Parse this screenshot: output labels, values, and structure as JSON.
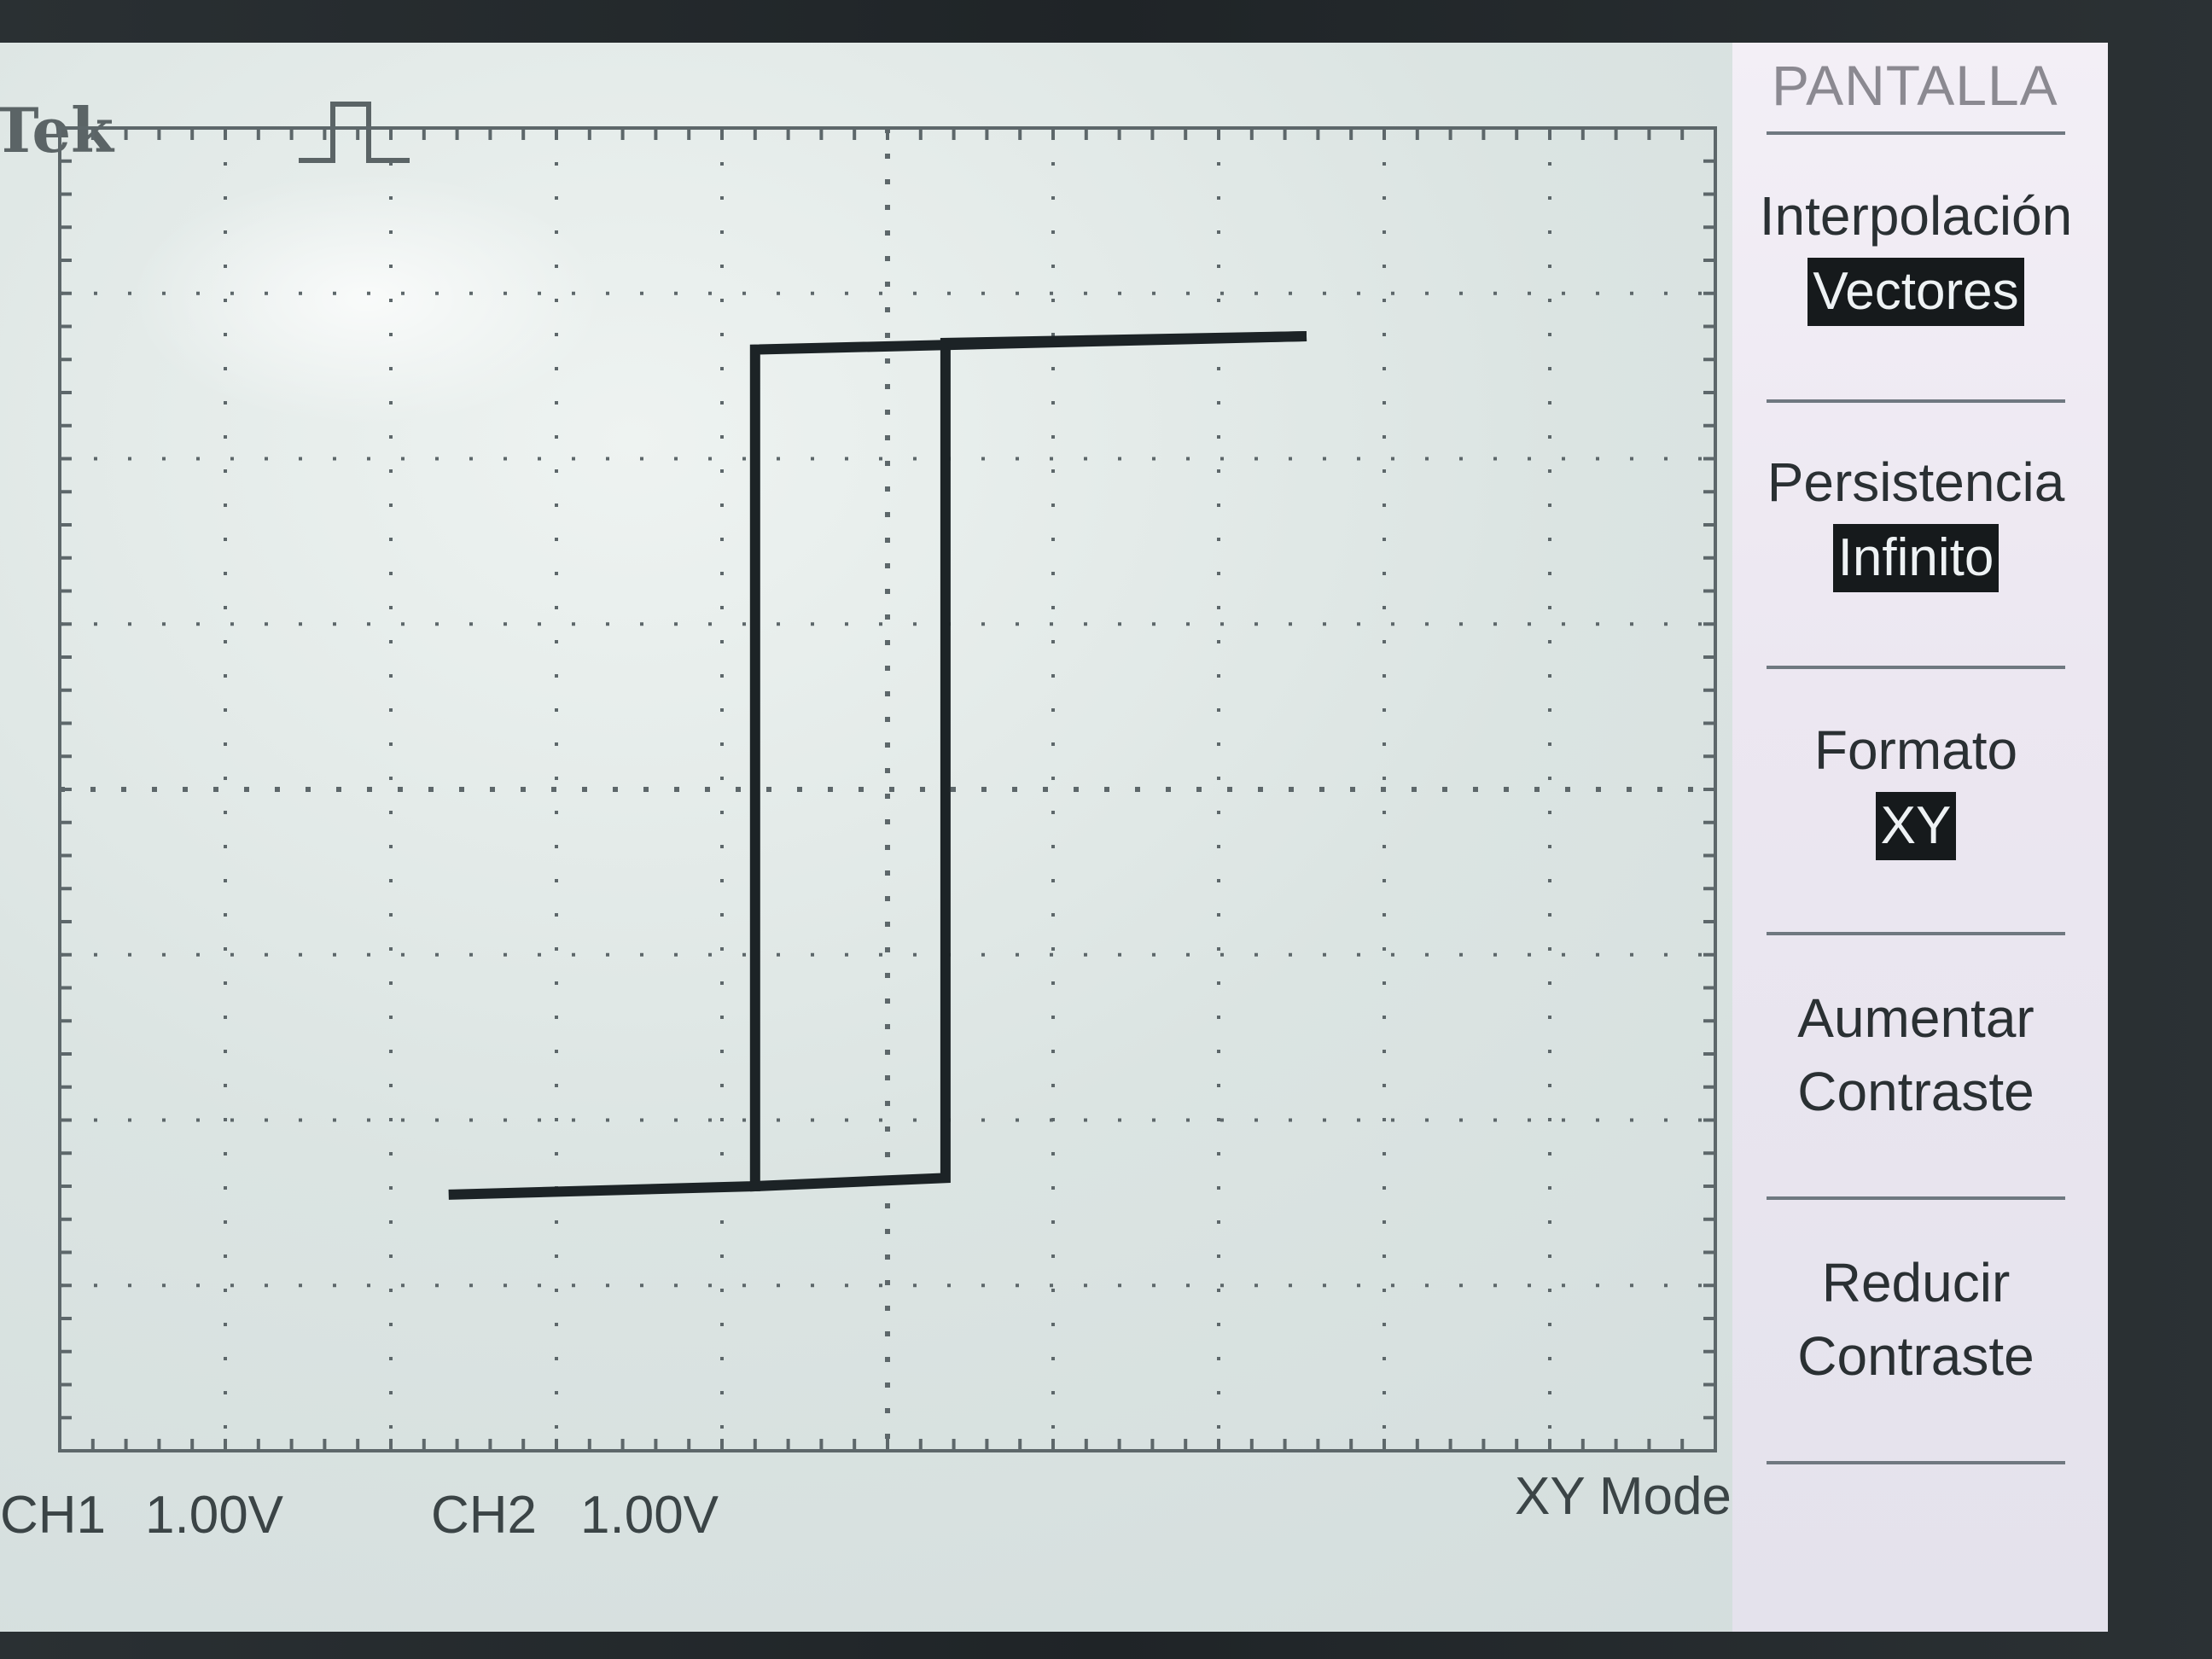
{
  "brand": "Tek",
  "trigger_status_icon": "pulse-icon",
  "readouts": {
    "ch1_label": "CH1",
    "ch1_scale": "1.00V",
    "ch2_label": "CH2",
    "ch2_scale": "1.00V",
    "mode": "XY Mode"
  },
  "menu": {
    "title": "PANTALLA",
    "items": [
      {
        "label": "Interpolación",
        "value": "Vectores"
      },
      {
        "label": "Persistencia",
        "value": "Infinito"
      },
      {
        "label": "Formato",
        "value": "XY"
      },
      {
        "label": "Aumentar",
        "label2": "Contraste"
      },
      {
        "label": "Reducir",
        "label2": "Contraste"
      }
    ]
  },
  "colors": {
    "screen": "#dbe4e2",
    "trace": "#1c2326",
    "graticule": "#5d676a",
    "menu_bg": "#ece7f1",
    "highlight_bg": "#161a1c"
  },
  "chart_data": {
    "type": "line",
    "x_unit": "V",
    "y_unit": "V",
    "xlim": [
      -5,
      5
    ],
    "ylim": [
      -4,
      4
    ],
    "series": [
      {
        "x": [
          -2.62,
          -0.8,
          -0.8,
          2.5
        ],
        "y": [
          -2.45,
          -2.4,
          2.66,
          2.74
        ]
      },
      {
        "x": [
          -0.8,
          0.35,
          0.35,
          2.5
        ],
        "y": [
          -2.4,
          -2.35,
          2.7,
          2.74
        ]
      }
    ]
  }
}
